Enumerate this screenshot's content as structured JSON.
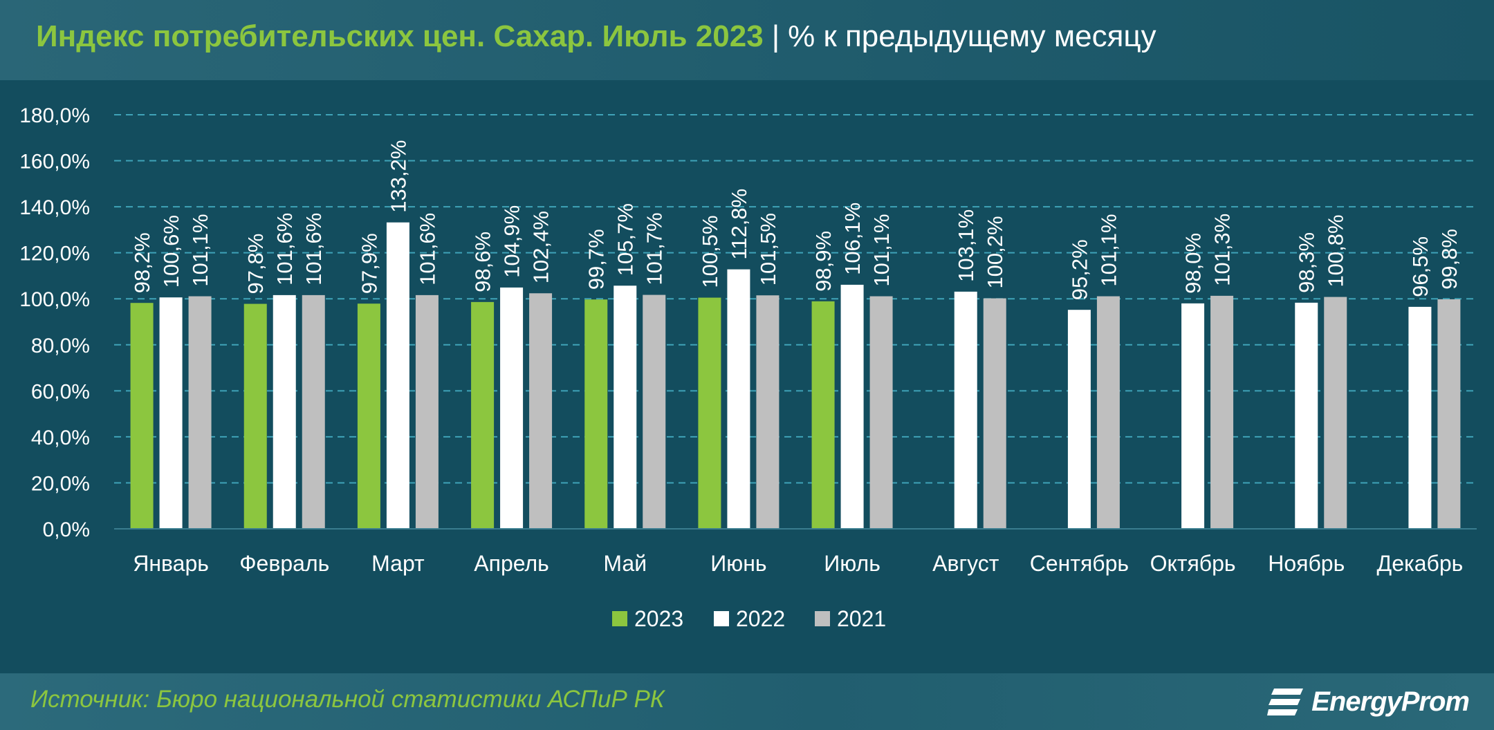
{
  "header": {
    "title": "Индекс потребительских цен. Сахар. Июль 2023",
    "separator": "|",
    "unit": "% к предыдущему месяцу"
  },
  "footer": {
    "source": "Источник: Бюро национальной статистики АСПиР РК",
    "logo_text": "EnergyProm"
  },
  "colors": {
    "background": "#134d5e",
    "accent_green": "#8cc63f",
    "series_2023": "#8cc63f",
    "series_2022": "#ffffff",
    "series_2021": "#bfbfbf",
    "grid": "#3fa3b8",
    "text": "#ffffff"
  },
  "chart_data": {
    "type": "bar",
    "categories": [
      "Январь",
      "Февраль",
      "Март",
      "Апрель",
      "Май",
      "Июнь",
      "Июль",
      "Август",
      "Сентябрь",
      "Октябрь",
      "Ноябрь",
      "Декабрь"
    ],
    "series": [
      {
        "name": "2023",
        "values": [
          98.2,
          97.8,
          97.9,
          98.6,
          99.7,
          100.5,
          98.9,
          null,
          null,
          null,
          null,
          null
        ],
        "labels": [
          "98,2%",
          "97,8%",
          "97,9%",
          "98,6%",
          "99,7%",
          "100,5%",
          "98,9%",
          null,
          null,
          null,
          null,
          null
        ]
      },
      {
        "name": "2022",
        "values": [
          100.6,
          101.6,
          133.2,
          104.9,
          105.7,
          112.8,
          106.1,
          103.1,
          95.2,
          98.0,
          98.3,
          96.5
        ],
        "labels": [
          "100,6%",
          "101,6%",
          "133,2%",
          "104,9%",
          "105,7%",
          "112,8%",
          "106,1%",
          "103,1%",
          "95,2%",
          "98,0%",
          "98,3%",
          "96,5%"
        ]
      },
      {
        "name": "2021",
        "values": [
          101.1,
          101.6,
          101.6,
          102.4,
          101.7,
          101.5,
          101.1,
          100.2,
          101.1,
          101.3,
          100.8,
          99.8
        ],
        "labels": [
          "101,1%",
          "101,6%",
          "101,6%",
          "102,4%",
          "101,7%",
          "101,5%",
          "101,1%",
          "100,2%",
          "101,1%",
          "101,3%",
          "100,8%",
          "99,8%"
        ]
      }
    ],
    "ylim": [
      0,
      180
    ],
    "yticks": [
      0,
      20,
      40,
      60,
      80,
      100,
      120,
      140,
      160,
      180
    ],
    "ytick_labels": [
      "0,0%",
      "20,0%",
      "40,0%",
      "60,0%",
      "80,0%",
      "100,0%",
      "120,0%",
      "140,0%",
      "160,0%",
      "180,0%"
    ],
    "grid": true,
    "legend_position": "bottom"
  }
}
